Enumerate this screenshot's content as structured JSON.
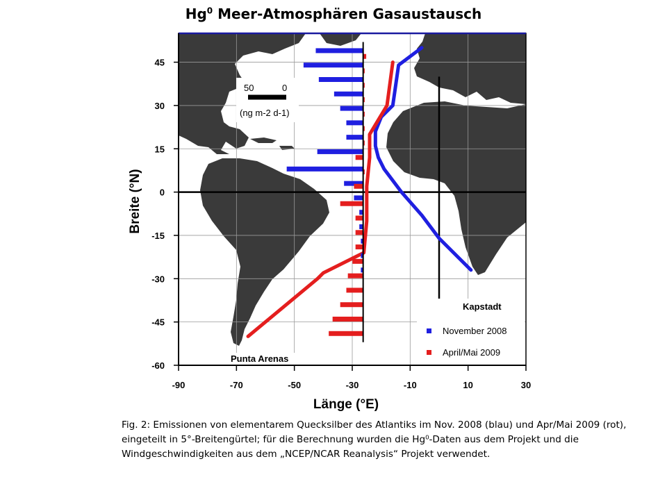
{
  "title": {
    "main": "Hg",
    "sup": "0",
    "rest": " Meer-Atmosphären Gasaustausch"
  },
  "caption": "Fig. 2: Emissionen von elementarem Quecksilber des Atlantiks im Nov. 2008 (blau) und Apr/Mai 2009 (rot), eingeteilt in 5°-Breitengürtel; für die Berechnung wurden die Hg⁰-Daten aus dem Projekt und die Windgeschwindigkeiten aus dem „NCEP/NCAR Reanalysis“ Projekt verwendet.",
  "colors": {
    "nov": "#1f1fe0",
    "apr": "#e41e1e",
    "land": "#3a3a3a",
    "ocean": "#ffffff"
  },
  "chart_data": {
    "type": "bar",
    "xlabel": "Länge (°E)",
    "ylabel": "Breite (°N)",
    "xlim": [
      -90,
      30
    ],
    "ylim": [
      -60,
      55
    ],
    "xticks": [
      -90,
      -70,
      -50,
      -30,
      -10,
      10,
      30
    ],
    "yticks": [
      45,
      30,
      15,
      0,
      -15,
      -30,
      -45,
      -60
    ],
    "grid": true,
    "flux_baseline_lon": -26,
    "scale_bar": {
      "label_left": "50",
      "label_right": "0",
      "units": "(ng m-2 d-1)",
      "length_flux": 50
    },
    "labels": {
      "kapstadt": "Kapstadt",
      "punta": "Punta Arenas"
    },
    "legend": {
      "position": "bottom-right",
      "entries": [
        "November 2008",
        "April/Mai 2009"
      ]
    },
    "series": [
      {
        "name": "November 2008",
        "color": "#1f1fe0",
        "lat": [
          49,
          44,
          39,
          34,
          29,
          24,
          19,
          14,
          8,
          3,
          -2,
          -7,
          -12,
          -17,
          -22,
          -27
        ],
        "flux": [
          -62,
          -78,
          -58,
          -38,
          -30,
          -22,
          -22,
          -60,
          -100,
          -25,
          -12,
          -5,
          -5,
          -3,
          -3,
          -3
        ]
      },
      {
        "name": "April/Mai 2009",
        "color": "#e41e1e",
        "lat": [
          47,
          42,
          37,
          32,
          27,
          22,
          17,
          12,
          7,
          2,
          -4,
          -9,
          -14,
          -19,
          -24,
          -29,
          -34,
          -39,
          -44,
          -49
        ],
        "flux": [
          4,
          2,
          2,
          2,
          2,
          2,
          2,
          -10,
          2,
          -12,
          -30,
          -10,
          -10,
          -10,
          -14,
          -20,
          -22,
          -30,
          -40,
          -45
        ]
      }
    ],
    "tracks": [
      {
        "name": "November 2008",
        "color": "#1f1fe0",
        "lon": [
          -6,
          -14,
          -16,
          -20,
          -22,
          -22,
          -21,
          -19,
          -13,
          -6,
          0,
          11
        ],
        "lat": [
          50,
          44,
          30,
          26,
          21,
          16,
          12,
          8,
          0,
          -8,
          -16,
          -27
        ]
      },
      {
        "name": "April/Mai 2009",
        "color": "#e41e1e",
        "lon": [
          -16,
          -18,
          -24,
          -24,
          -25,
          -25,
          -26,
          -40,
          -42,
          -66
        ],
        "lat": [
          45,
          30,
          20,
          12,
          2,
          -10,
          -21,
          -28,
          -30,
          -50
        ]
      }
    ],
    "meridians_black": [
      -26,
      0
    ]
  }
}
